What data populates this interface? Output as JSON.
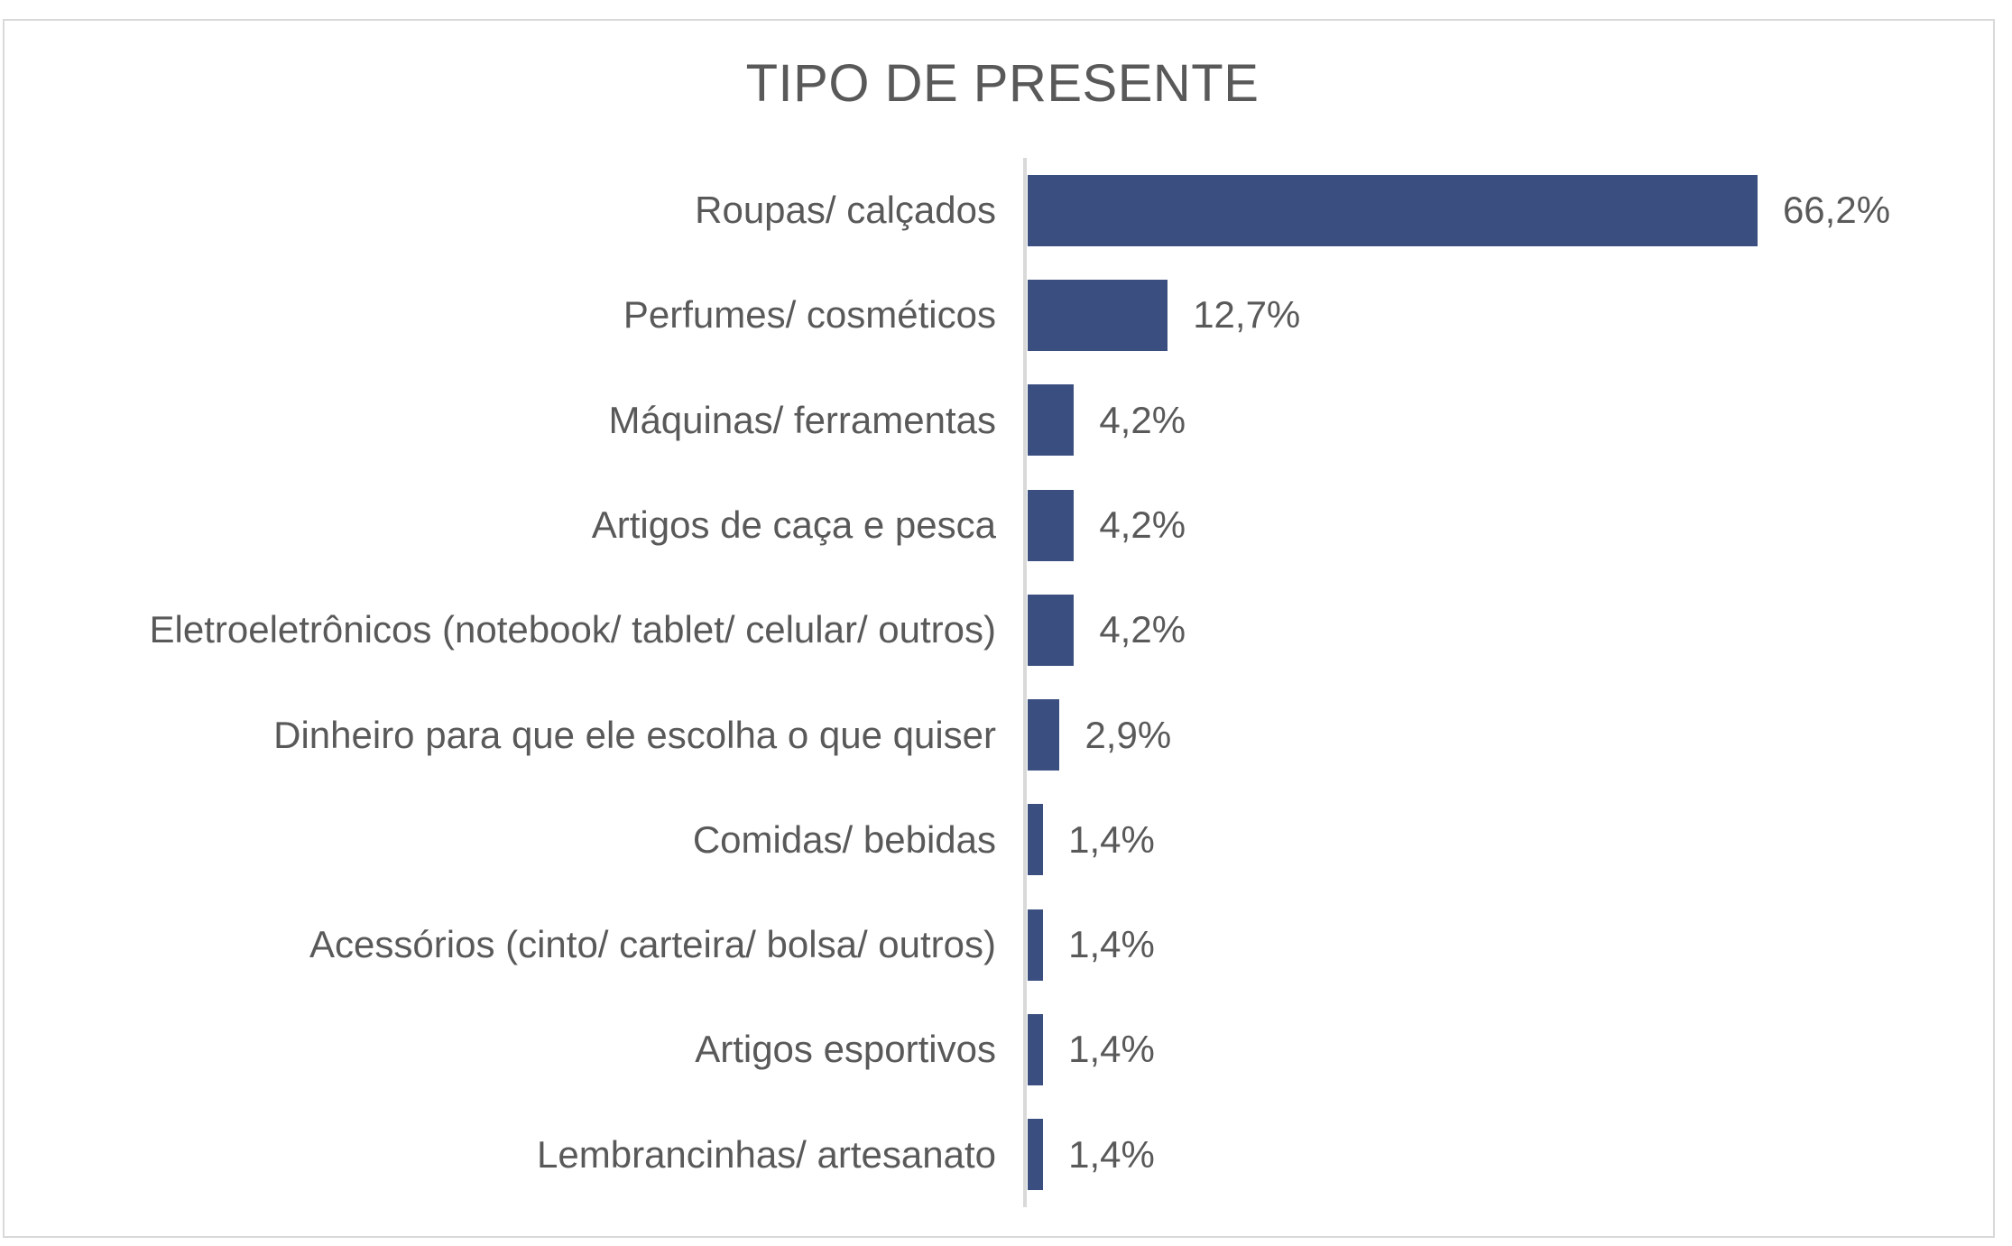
{
  "chart_data": {
    "type": "bar",
    "orientation": "horizontal",
    "title": "TIPO DE PRESENTE",
    "categories": [
      "Roupas/ calçados",
      "Perfumes/ cosméticos",
      "Máquinas/ ferramentas",
      "Artigos de caça e pesca",
      "Eletroeletrônicos (notebook/ tablet/ celular/ outros)",
      "Dinheiro para que ele escolha o que quiser",
      "Comidas/ bebidas",
      "Acessórios (cinto/ carteira/ bolsa/ outros)",
      "Artigos esportivos",
      "Lembrancinhas/ artesanato"
    ],
    "values": [
      66.2,
      12.7,
      4.2,
      4.2,
      4.2,
      2.9,
      1.4,
      1.4,
      1.4,
      1.4
    ],
    "value_labels": [
      "66,2%",
      "12,7%",
      "4,2%",
      "4,2%",
      "4,2%",
      "2,9%",
      "1,4%",
      "1,4%",
      "1,4%",
      "1,4%"
    ],
    "xlabel": "",
    "ylabel": "",
    "xlim": [
      0,
      70
    ],
    "grid": false,
    "legend": false,
    "bar_color": "#3A4E80",
    "text_color": "#595959",
    "axis_line_color": "#D9D9D9",
    "background_color": "#FFFFFF"
  }
}
